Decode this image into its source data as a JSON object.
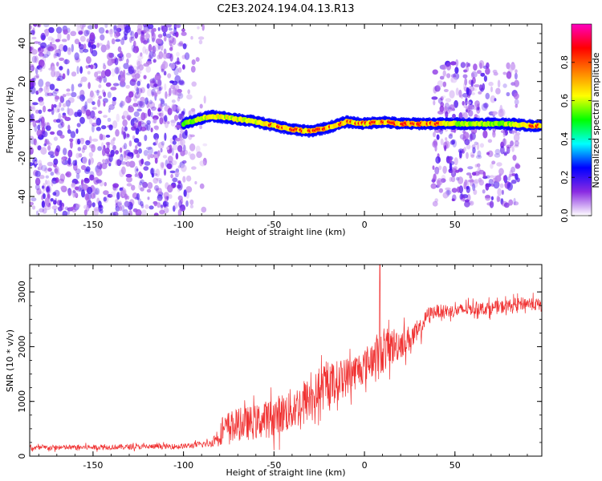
{
  "figure": {
    "title": "C2E3.2024.194.04.13.R13"
  },
  "chart_data": [
    {
      "type": "heatmap",
      "name": "spectrogram",
      "xlabel": "Height of straight line (km)",
      "ylabel": "Frequency (Hz)",
      "xlim": [
        -185,
        98
      ],
      "ylim": [
        -50,
        50
      ],
      "xticks": [
        -150,
        -100,
        -50,
        0,
        50
      ],
      "yticks": [
        -40,
        -20,
        0,
        20,
        40
      ],
      "colorbar": {
        "label": "Normalized spectral amplitude",
        "range": [
          0,
          1
        ],
        "ticks": [
          0.0,
          0.2,
          0.4,
          0.6,
          0.8
        ],
        "tick_labels": [
          "0.0",
          "0.2",
          "0.4",
          "0.6",
          "0.8"
        ],
        "colors": [
          "#ffffff",
          "#8a2be2",
          "#0000ff",
          "#00ffff",
          "#00ff00",
          "#ffff00",
          "#ff8000",
          "#ff0000",
          "#ff00c0"
        ]
      },
      "ridge": {
        "description_points_x": [
          -100,
          -85,
          -75,
          -60,
          -50,
          -40,
          -30,
          -20,
          -10,
          0,
          10,
          20,
          30,
          40,
          50,
          60,
          70,
          80,
          90,
          98
        ],
        "description_points_freq": [
          -2,
          2,
          1,
          -1,
          -3,
          -5,
          -6,
          -4,
          -1,
          -2,
          -1,
          -2,
          -2,
          -2,
          -2,
          -2,
          -2,
          -2,
          -3,
          -3
        ],
        "peak_amplitude": [
          0.4,
          0.7,
          0.65,
          0.6,
          0.8,
          0.85,
          0.9,
          0.8,
          0.8,
          0.85,
          0.9,
          0.95,
          0.95,
          0.9,
          0.5,
          0.5,
          0.5,
          0.5,
          0.9,
          0.9
        ]
      },
      "noise_regions": [
        {
          "x_range": [
            -185,
            -98
          ],
          "freq_range": [
            -50,
            50
          ],
          "level": 0.25
        },
        {
          "x_range": [
            -98,
            -88
          ],
          "freq_range": [
            -50,
            50
          ],
          "level": 0.08
        },
        {
          "x_range": [
            38,
            85
          ],
          "freq_range": [
            -45,
            30
          ],
          "level": 0.22
        }
      ]
    },
    {
      "type": "line",
      "name": "snr",
      "xlabel": "Height of straight line (km)",
      "ylabel": "SNR (10 * v/v)",
      "xlim": [
        -185,
        98
      ],
      "ylim": [
        0,
        3500
      ],
      "xticks": [
        -150,
        -100,
        -50,
        0,
        50
      ],
      "yticks": [
        0,
        1000,
        2000,
        3000
      ],
      "color": "#f03030",
      "series_profile": {
        "x": [
          -185,
          -100,
          -85,
          -80,
          -75,
          -60,
          -50,
          -40,
          -30,
          -20,
          -10,
          0,
          5,
          8,
          10,
          15,
          25,
          30,
          35,
          40,
          50,
          60,
          70,
          80,
          90,
          98
        ],
        "mean": [
          150,
          180,
          230,
          400,
          550,
          620,
          720,
          850,
          1050,
          1300,
          1450,
          1650,
          1800,
          1900,
          1900,
          2000,
          2150,
          2250,
          2600,
          2650,
          2650,
          2700,
          2700,
          2750,
          2800,
          2750
        ],
        "spread": [
          60,
          60,
          80,
          250,
          350,
          400,
          450,
          500,
          500,
          500,
          450,
          400,
          450,
          500,
          500,
          450,
          300,
          250,
          150,
          150,
          150,
          150,
          150,
          150,
          150,
          150
        ]
      },
      "spike": {
        "x": 8.5,
        "value": 3500
      }
    }
  ]
}
